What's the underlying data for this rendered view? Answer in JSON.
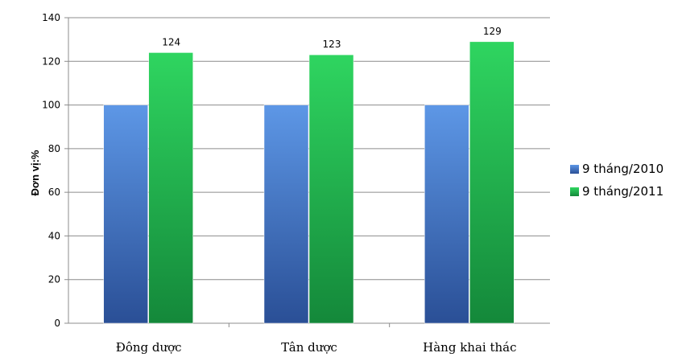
{
  "chart_data": {
    "type": "bar",
    "categories": [
      "Đông dược",
      "Tân dược",
      "Hàng khai thác"
    ],
    "series": [
      {
        "name": "9 tháng/2010",
        "values": [
          100,
          100,
          100
        ],
        "color": "#4a7fd0",
        "show_labels": false
      },
      {
        "name": "9 tháng/2011",
        "values": [
          124,
          123,
          129
        ],
        "color": "#22b04a",
        "show_labels": true
      }
    ],
    "ylabel": "Đơn vị:%",
    "ylim": [
      0,
      140
    ],
    "yticks": [
      0,
      20,
      40,
      60,
      80,
      100,
      120,
      140
    ],
    "grid": true,
    "legend": "right"
  }
}
